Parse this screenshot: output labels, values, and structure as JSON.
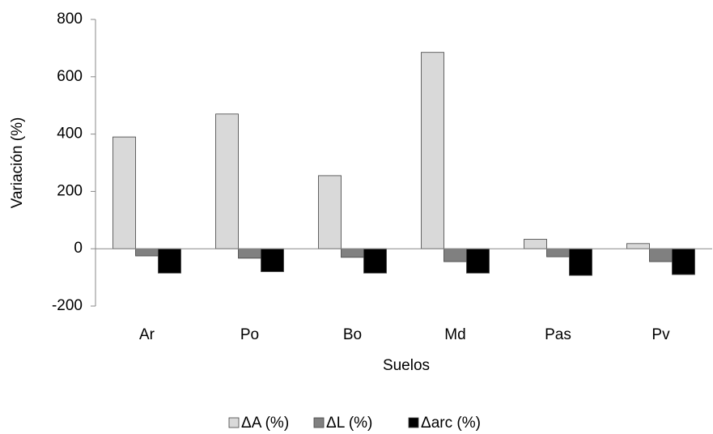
{
  "chart_data": {
    "type": "bar",
    "x_label": "Suelos",
    "y_label": "Variación (%)",
    "categories": [
      "Ar",
      "Po",
      "Bo",
      "Md",
      "Pas",
      "Pv"
    ],
    "series": [
      {
        "name": "ΔA (%)",
        "color": "#d9d9d9",
        "values": [
          390,
          470,
          255,
          685,
          33,
          18
        ]
      },
      {
        "name": "ΔL (%)",
        "color": "#808080",
        "values": [
          -25,
          -33,
          -30,
          -45,
          -28,
          -45
        ]
      },
      {
        "name": "Δarc (%)",
        "color": "#000000",
        "values": [
          -85,
          -80,
          -85,
          -85,
          -93,
          -90
        ]
      }
    ],
    "ylim": [
      -200,
      800
    ],
    "yticks": [
      -200,
      0,
      200,
      400,
      600,
      800
    ],
    "grid": false,
    "legend": "bottom"
  }
}
